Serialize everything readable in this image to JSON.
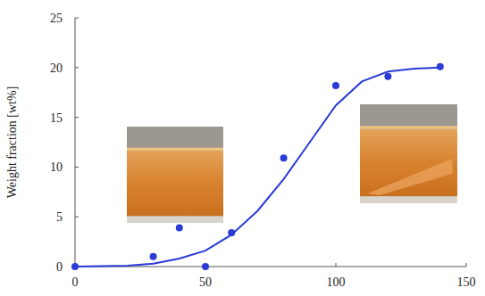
{
  "chart_data": {
    "type": "scatter",
    "y_label": "Weight fraction [wt%]",
    "x": [
      0,
      10,
      20,
      30,
      40,
      50,
      60,
      70,
      80,
      90,
      100,
      110,
      120,
      130,
      140
    ],
    "series": [
      {
        "type": "scatter",
        "marker": "circle",
        "color": "#2a3bd6",
        "values": [
          0,
          null,
          null,
          1.0,
          3.9,
          0,
          3.4,
          null,
          10.9,
          null,
          18.2,
          null,
          19.1,
          null,
          20.1
        ]
      },
      {
        "type": "line",
        "line_style": "solid",
        "color": "#2a3bd6",
        "values": [
          0,
          0.05,
          0.1,
          0.3,
          0.8,
          1.6,
          3.2,
          5.6,
          8.8,
          12.5,
          16.2,
          18.6,
          19.6,
          19.9,
          20.0
        ]
      }
    ],
    "xlim": [
      0,
      150
    ],
    "xticks": [
      0,
      50,
      100,
      150
    ],
    "ylim": [
      0,
      25
    ],
    "yticks": [
      0,
      5,
      10,
      15,
      20,
      25
    ],
    "grid": false
  }
}
